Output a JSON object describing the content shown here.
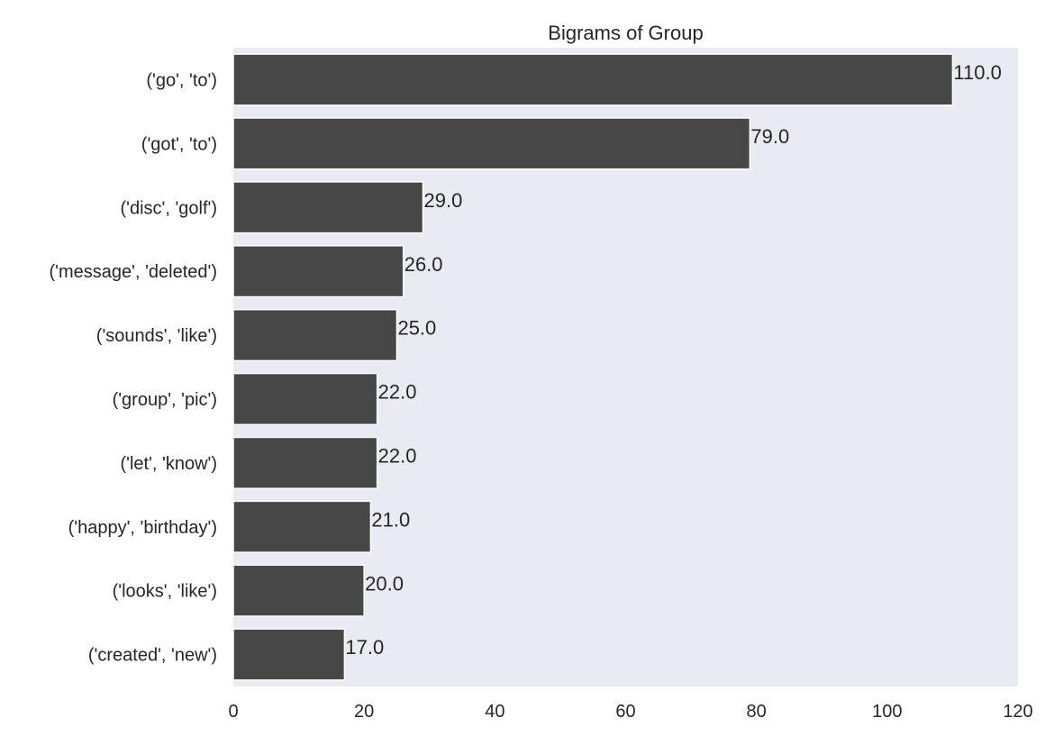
{
  "chart_data": {
    "type": "bar",
    "orientation": "horizontal",
    "title": "Bigrams of Group",
    "xlabel": "",
    "ylabel": "",
    "categories": [
      "('go', 'to')",
      "('got', 'to')",
      "('disc', 'golf')",
      "('message', 'deleted')",
      "('sounds', 'like')",
      "('group', 'pic')",
      "('let', 'know')",
      "('happy', 'birthday')",
      "('looks', 'like')",
      "('created', 'new')"
    ],
    "values": [
      110,
      79,
      29,
      26,
      25,
      22,
      22,
      21,
      20,
      17
    ],
    "data_labels": [
      "110.0",
      "79.0",
      "29.0",
      "26.0",
      "25.0",
      "22.0",
      "22.0",
      "21.0",
      "20.0",
      "17.0"
    ],
    "xlim": [
      0,
      120
    ],
    "xticks": [
      "0",
      "20",
      "40",
      "60",
      "80",
      "100",
      "120"
    ],
    "grid": false,
    "colors": {
      "bar": "#474747",
      "background": "#eaeaf2",
      "bar_edge": "#ffffff"
    }
  }
}
